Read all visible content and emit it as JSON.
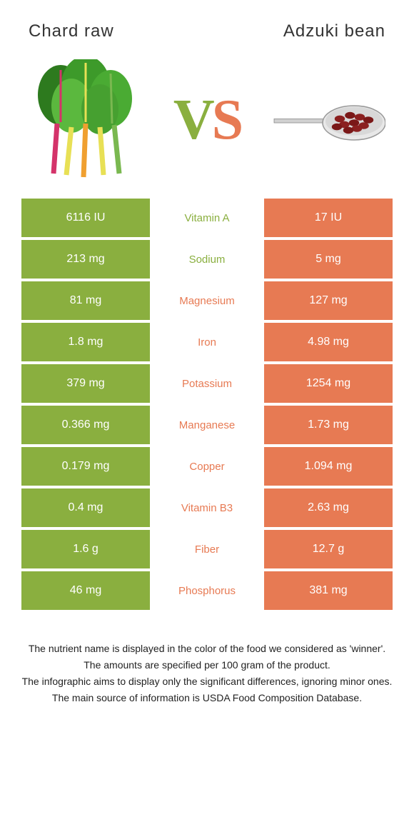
{
  "title_left": "Chard raw",
  "title_right": "Adzuki bean",
  "vs_text": "VS",
  "colors": {
    "left_bg": "#8aaf3f",
    "right_bg": "#e77a53",
    "left_text": "#8aaf3f",
    "right_text": "#e77a53",
    "vs_left": "#8aaf3f",
    "vs_right": "#e77a53"
  },
  "rows": [
    {
      "left": "6116 IU",
      "label": "Vitamin A",
      "right": "17 IU",
      "winner": "left"
    },
    {
      "left": "213 mg",
      "label": "Sodium",
      "right": "5 mg",
      "winner": "left"
    },
    {
      "left": "81 mg",
      "label": "Magnesium",
      "right": "127 mg",
      "winner": "right"
    },
    {
      "left": "1.8 mg",
      "label": "Iron",
      "right": "4.98 mg",
      "winner": "right"
    },
    {
      "left": "379 mg",
      "label": "Potassium",
      "right": "1254 mg",
      "winner": "right"
    },
    {
      "left": "0.366 mg",
      "label": "Manganese",
      "right": "1.73 mg",
      "winner": "right"
    },
    {
      "left": "0.179 mg",
      "label": "Copper",
      "right": "1.094 mg",
      "winner": "right"
    },
    {
      "left": "0.4 mg",
      "label": "Vitamin B3",
      "right": "2.63 mg",
      "winner": "right"
    },
    {
      "left": "1.6 g",
      "label": "Fiber",
      "right": "12.7 g",
      "winner": "right"
    },
    {
      "left": "46 mg",
      "label": "Phosphorus",
      "right": "381 mg",
      "winner": "right"
    }
  ],
  "footer": [
    "The nutrient name is displayed in the color of the food we considered as 'winner'.",
    "The amounts are specified per 100 gram of the product.",
    "The infographic aims to display only the significant differences, ignoring minor ones.",
    "The main source of information is USDA Food Composition Database."
  ]
}
